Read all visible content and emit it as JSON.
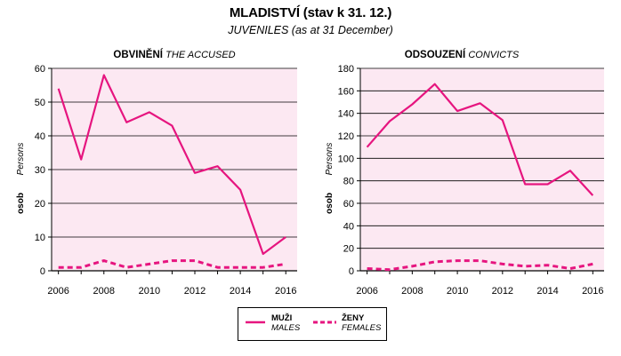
{
  "title": "MLADISTVÍ (stav k 31. 12.)",
  "subtitle": "JUVENILES (as at 31 December)",
  "y_axis": {
    "label_cz": "osob",
    "label_en": "Persons"
  },
  "legend": {
    "males_cz": "MUŽI",
    "males_en": "MALES",
    "females_cz": "ŽENY",
    "females_en": "FEMALES"
  },
  "colors": {
    "line": "#e6157f",
    "plot_bg": "#fce8f2",
    "grid": "#000000"
  },
  "chart_data": [
    {
      "type": "line",
      "title": "OBVINĚNÍ",
      "title_en": "THE ACCUSED",
      "x": [
        2006,
        2007,
        2008,
        2009,
        2010,
        2011,
        2012,
        2013,
        2014,
        2015,
        2016
      ],
      "xticks": [
        "2006",
        "2008",
        "2010",
        "2012",
        "2014",
        "2016"
      ],
      "ylim": [
        0,
        60
      ],
      "yticks": [
        "0",
        "10",
        "20",
        "30",
        "40",
        "50",
        "60"
      ],
      "grid": true,
      "series": [
        {
          "name": "MUŽI",
          "style": "solid",
          "values": [
            54,
            33,
            58,
            44,
            47,
            43,
            29,
            31,
            24,
            5,
            10
          ]
        },
        {
          "name": "ŽENY",
          "style": "dashed",
          "values": [
            1,
            1,
            3,
            1,
            2,
            3,
            3,
            1,
            1,
            1,
            2
          ]
        }
      ]
    },
    {
      "type": "line",
      "title": "ODSOUZENÍ",
      "title_en": "CONVICTS",
      "x": [
        2006,
        2007,
        2008,
        2009,
        2010,
        2011,
        2012,
        2013,
        2014,
        2015,
        2016
      ],
      "xticks": [
        "2006",
        "2008",
        "2010",
        "2012",
        "2014",
        "2016"
      ],
      "ylim": [
        0,
        180
      ],
      "yticks": [
        "0",
        "20",
        "40",
        "60",
        "80",
        "100",
        "120",
        "140",
        "160",
        "180"
      ],
      "grid": true,
      "series": [
        {
          "name": "MUŽI",
          "style": "solid",
          "values": [
            110,
            133,
            148,
            166,
            142,
            149,
            134,
            77,
            77,
            89,
            67
          ]
        },
        {
          "name": "ŽENY",
          "style": "dashed",
          "values": [
            2,
            1,
            4,
            8,
            9,
            9,
            6,
            4,
            5,
            2,
            6
          ]
        }
      ]
    }
  ]
}
